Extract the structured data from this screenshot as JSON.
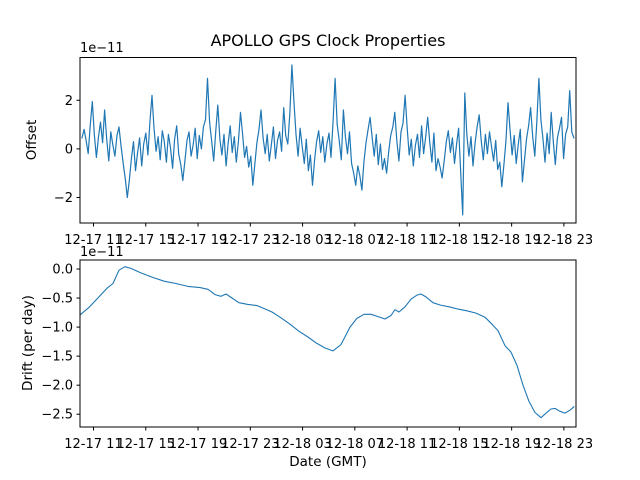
{
  "figure": {
    "title": "APOLLO GPS Clock Properties",
    "background": "#ffffff",
    "line_color": "#1f77b4"
  },
  "chart_data": [
    {
      "type": "line",
      "title": "APOLLO GPS Clock Properties",
      "ylabel": "Offset",
      "xlabel": "",
      "scale_factor": "1e−11",
      "unit_scale": "1e-11",
      "grid": false,
      "legend": "none",
      "ylim": [
        -3.05,
        3.76
      ],
      "y_tick_values": [
        2,
        0,
        -2
      ],
      "y_tick_labels": [
        "2",
        "0",
        "−2"
      ],
      "x_tick_hours": [
        0,
        4,
        8,
        12,
        16,
        20,
        24,
        28,
        32,
        36
      ],
      "x_tick_labels": [
        "12-17 11",
        "12-17 15",
        "12-17 19",
        "12-17 23",
        "12-18 03",
        "12-18 07",
        "12-18 11",
        "12-18 15",
        "12-18 19",
        "12-18 23"
      ],
      "x_start_hours": -0.88,
      "x_step_hours": 0.1575,
      "series": [
        {
          "name": "offset",
          "color": "#1f77b4",
          "values": [
            0.45,
            0.8,
            0.35,
            -0.2,
            0.95,
            1.95,
            0.6,
            -0.35,
            0.5,
            1.1,
            0.25,
            1.6,
            0.4,
            -0.5,
            0.7,
            0.15,
            -0.3,
            0.55,
            0.9,
            0.1,
            -0.6,
            -1.2,
            -2.0,
            -1.3,
            -0.4,
            0.3,
            -0.9,
            -0.15,
            0.45,
            -0.7,
            0.2,
            0.65,
            -0.25,
            1.1,
            2.2,
            0.85,
            -0.1,
            0.5,
            -0.45,
            0.75,
            0.3,
            -0.55,
            0.6,
            0.05,
            -0.8,
            0.4,
            0.95,
            -0.2,
            -0.65,
            -1.3,
            -0.5,
            0.35,
            0.7,
            -0.3,
            0.15,
            0.85,
            -0.4,
            0.55,
            0.0,
            0.9,
            1.2,
            2.9,
            1.1,
            0.3,
            -0.5,
            0.75,
            1.8,
            0.4,
            -0.25,
            0.6,
            -0.7,
            0.2,
            0.95,
            -0.15,
            0.5,
            -0.55,
            0.3,
            1.5,
            0.65,
            -0.35,
            0.1,
            -0.75,
            -0.3,
            -1.5,
            -0.6,
            0.25,
            0.8,
            1.6,
            0.45,
            -0.2,
            0.6,
            -0.5,
            0.15,
            0.9,
            -0.4,
            0.35,
            0.7,
            -0.1,
            1.7,
            0.55,
            0.2,
            1.5,
            3.45,
            1.9,
            0.6,
            -0.3,
            0.85,
            0.1,
            -0.6,
            0.4,
            -0.9,
            -0.25,
            -1.5,
            -0.45,
            0.3,
            0.75,
            -0.15,
            0.5,
            -0.55,
            0.2,
            0.65,
            -0.35,
            1.15,
            2.9,
            1.0,
            0.35,
            -0.45,
            1.6,
            0.5,
            -0.2,
            0.7,
            -0.6,
            -1.0,
            -1.5,
            -0.7,
            -1.1,
            -1.7,
            -0.55,
            0.25,
            0.8,
            1.3,
            0.45,
            -0.3,
            0.6,
            -0.65,
            0.2,
            -0.85,
            -0.4,
            -1.0,
            -0.15,
            0.55,
            0.9,
            1.5,
            0.3,
            -0.5,
            0.7,
            1.05,
            2.2,
            0.85,
            -0.25,
            0.4,
            -0.7,
            0.15,
            0.6,
            -0.35,
            0.95,
            -0.2,
            0.5,
            1.3,
            0.25,
            -0.55,
            0.65,
            -0.9,
            -0.4,
            -0.75,
            -1.2,
            -0.5,
            0.3,
            0.75,
            -0.15,
            0.45,
            -0.6,
            0.2,
            0.85,
            -0.95,
            -2.72,
            2.3,
            0.6,
            -0.3,
            0.5,
            -0.7,
            0.25,
            0.9,
            1.4,
            0.35,
            -0.45,
            0.6,
            -0.2,
            0.7,
            0.1,
            -0.5,
            0.35,
            -0.85,
            -0.55,
            -1.56,
            -0.65,
            0.3,
            1.9,
            0.75,
            -0.25,
            0.55,
            -0.6,
            0.2,
            0.8,
            -1.36,
            -0.45,
            0.4,
            0.95,
            1.7,
            0.5,
            -0.3,
            1.1,
            2.9,
            1.2,
            0.4,
            -0.55,
            0.65,
            -0.2,
            1.5,
            0.3,
            -0.65,
            0.45,
            0.85,
            1.3,
            -0.4,
            0.6,
            0.9,
            2.4,
            0.7,
            0.45
          ]
        }
      ]
    },
    {
      "type": "line",
      "title": "",
      "ylabel": "Drift (per day)",
      "xlabel": "Date (GMT)",
      "scale_factor": "1e−11",
      "unit_scale": "1e-11",
      "grid": false,
      "legend": "none",
      "ylim": [
        -2.72,
        0.155
      ],
      "y_tick_values": [
        0.0,
        -0.5,
        -1.0,
        -1.5,
        -2.0,
        -2.5
      ],
      "y_tick_labels": [
        "0.0",
        "−0.5",
        "−1.0",
        "−1.5",
        "−2.0",
        "−2.5"
      ],
      "x_tick_hours": [
        0,
        4,
        8,
        12,
        16,
        20,
        24,
        28,
        32,
        36
      ],
      "x_tick_labels": [
        "12-17 11",
        "12-17 15",
        "12-17 19",
        "12-17 23",
        "12-18 03",
        "12-18 07",
        "12-18 11",
        "12-18 15",
        "12-18 19",
        "12-18 23"
      ],
      "series": [
        {
          "name": "drift",
          "color": "#1f77b4",
          "x_hours": [
            -1.03,
            -0.34,
            0.34,
            1.03,
            1.49,
            1.95,
            2.41,
            2.87,
            3.56,
            4.48,
            5.4,
            6.31,
            7.23,
            8.15,
            8.76,
            9.3,
            9.76,
            10.14,
            10.6,
            11.13,
            11.82,
            12.51,
            13.05,
            13.66,
            14.35,
            15.04,
            15.72,
            16.41,
            17.1,
            17.72,
            18.33,
            18.94,
            19.63,
            20.16,
            20.7,
            21.24,
            21.77,
            22.31,
            22.77,
            23.07,
            23.38,
            23.84,
            24.3,
            24.76,
            25.06,
            25.45,
            25.98,
            26.52,
            27.21,
            27.9,
            28.58,
            29.27,
            29.96,
            30.5,
            30.96,
            31.49,
            31.95,
            32.41,
            32.87,
            33.33,
            33.79,
            34.25,
            34.63,
            35.01,
            35.32,
            35.7,
            36.08,
            36.47,
            36.77
          ],
          "values": [
            -0.79,
            -0.66,
            -0.5,
            -0.33,
            -0.25,
            -0.02,
            0.04,
            0.01,
            -0.06,
            -0.14,
            -0.21,
            -0.25,
            -0.3,
            -0.32,
            -0.35,
            -0.44,
            -0.47,
            -0.43,
            -0.5,
            -0.58,
            -0.61,
            -0.63,
            -0.68,
            -0.74,
            -0.84,
            -0.95,
            -1.07,
            -1.17,
            -1.28,
            -1.36,
            -1.41,
            -1.3,
            -1.0,
            -0.85,
            -0.78,
            -0.78,
            -0.82,
            -0.86,
            -0.8,
            -0.7,
            -0.74,
            -0.65,
            -0.52,
            -0.45,
            -0.43,
            -0.48,
            -0.58,
            -0.62,
            -0.65,
            -0.69,
            -0.72,
            -0.76,
            -0.83,
            -0.95,
            -1.06,
            -1.32,
            -1.43,
            -1.66,
            -2.0,
            -2.28,
            -2.47,
            -2.56,
            -2.48,
            -2.41,
            -2.4,
            -2.45,
            -2.48,
            -2.43,
            -2.37
          ]
        }
      ]
    }
  ]
}
